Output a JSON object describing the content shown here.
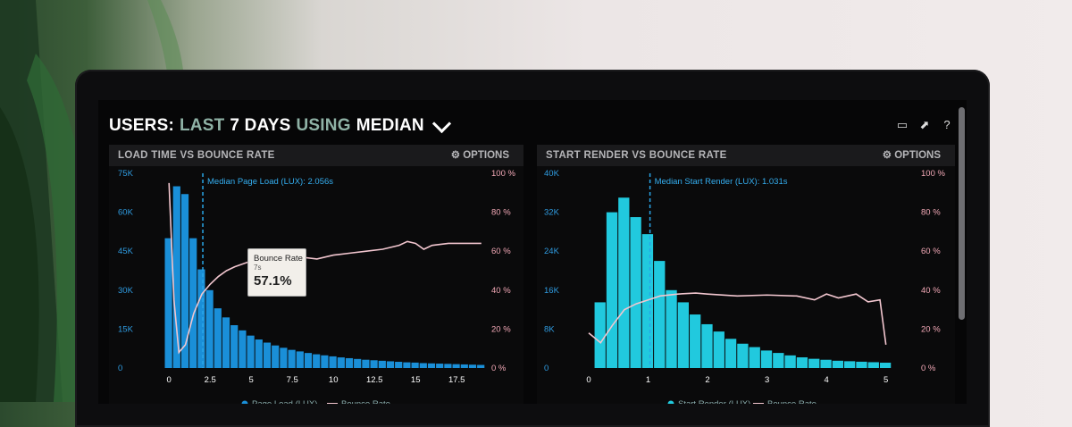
{
  "header": {
    "prefix": "USERS:",
    "range": "LAST",
    "days": "7 DAYS",
    "using": "USING",
    "metric": "MEDIAN"
  },
  "icons": [
    "monitor-icon",
    "share-icon",
    "help-icon"
  ],
  "colors": {
    "bar_left": "#1a8fd8",
    "bar_right": "#21c9de",
    "line": "#f2c6cf",
    "median": "#2aa6e8"
  },
  "panels": [
    {
      "title": "LOAD TIME VS BOUNCE RATE",
      "options": "OPTIONS",
      "median_label": "Median Page Load (LUX): 2.056s",
      "tooltip": {
        "title": "Bounce Rate",
        "sub": "7s",
        "value": "57.1%"
      },
      "legend": [
        "Page Load (LUX)",
        "Bounce Rate"
      ]
    },
    {
      "title": "START RENDER VS BOUNCE RATE",
      "options": "OPTIONS",
      "median_label": "Median Start Render (LUX): 1.031s",
      "legend": [
        "Start Render (LUX)",
        "Bounce Rate"
      ]
    }
  ],
  "chart_data": [
    {
      "type": "bar",
      "title": "LOAD TIME VS BOUNCE RATE",
      "y_left_ticks": [
        "75K",
        "60K",
        "45K",
        "30K",
        "15K",
        "0"
      ],
      "y_right_ticks": [
        "100 %",
        "80 %",
        "60 %",
        "40 %",
        "20 %",
        "0 %"
      ],
      "x_ticks": [
        "0",
        "2.5",
        "5",
        "7.5",
        "10",
        "12.5",
        "15",
        "17.5"
      ],
      "ylim": [
        0,
        75000
      ],
      "xlim": [
        -0.5,
        19.5
      ],
      "median_x": 2.056,
      "series": [
        {
          "name": "Page Load (LUX)",
          "x": [
            0,
            0.5,
            1,
            1.5,
            2,
            2.5,
            3,
            3.5,
            4,
            4.5,
            5,
            5.5,
            6,
            6.5,
            7,
            7.5,
            8,
            8.5,
            9,
            9.5,
            10,
            10.5,
            11,
            11.5,
            12,
            12.5,
            13,
            13.5,
            14,
            14.5,
            15,
            15.5,
            16,
            16.5,
            17,
            17.5,
            18,
            18.5,
            19
          ],
          "values": [
            50000,
            70000,
            67000,
            50000,
            38000,
            30000,
            23000,
            19500,
            16500,
            14500,
            12500,
            11000,
            9800,
            8700,
            7800,
            7000,
            6400,
            5800,
            5300,
            4900,
            4500,
            4100,
            3800,
            3500,
            3200,
            3000,
            2800,
            2600,
            2400,
            2200,
            2100,
            1900,
            1800,
            1700,
            1600,
            1500,
            1400,
            1300,
            1200
          ]
        },
        {
          "name": "Bounce Rate",
          "x": [
            0,
            0.3,
            0.6,
            1,
            1.5,
            2,
            2.5,
            3,
            3.5,
            4,
            5,
            6,
            7,
            8,
            9,
            10,
            11,
            12,
            13,
            14,
            14.5,
            15,
            15.5,
            16,
            17,
            18,
            19
          ],
          "values": [
            95,
            35,
            8,
            12,
            28,
            38,
            43,
            47,
            50,
            52,
            55,
            57,
            57.1,
            57,
            56,
            58,
            59,
            60,
            61,
            63,
            65,
            64,
            61,
            63,
            64,
            64,
            64
          ]
        }
      ]
    },
    {
      "type": "bar",
      "title": "START RENDER VS BOUNCE RATE",
      "y_left_ticks": [
        "40K",
        "32K",
        "24K",
        "16K",
        "8K",
        "0"
      ],
      "y_right_ticks": [
        "100 %",
        "80 %",
        "60 %",
        "40 %",
        "20 %",
        "0 %"
      ],
      "x_ticks": [
        "0",
        "1",
        "2",
        "3",
        "4",
        "5"
      ],
      "ylim": [
        0,
        40000
      ],
      "xlim": [
        0,
        5.2
      ],
      "median_x": 1.031,
      "series": [
        {
          "name": "Start Render (LUX)",
          "x": [
            0.2,
            0.4,
            0.6,
            0.8,
            1.0,
            1.2,
            1.4,
            1.6,
            1.8,
            2.0,
            2.2,
            2.4,
            2.6,
            2.8,
            3.0,
            3.2,
            3.4,
            3.6,
            3.8,
            4.0,
            4.2,
            4.4,
            4.6,
            4.8,
            5.0
          ],
          "values": [
            13500,
            32000,
            35000,
            31000,
            27500,
            22000,
            16000,
            13500,
            11000,
            9000,
            7500,
            6000,
            5000,
            4300,
            3600,
            3100,
            2600,
            2200,
            1900,
            1700,
            1500,
            1400,
            1300,
            1200,
            1100
          ]
        },
        {
          "name": "Bounce Rate",
          "x": [
            0,
            0.2,
            0.4,
            0.6,
            0.8,
            1,
            1.2,
            1.5,
            1.8,
            2,
            2.5,
            3,
            3.5,
            3.8,
            4,
            4.2,
            4.5,
            4.7,
            4.9,
            5.0
          ],
          "values": [
            18,
            13,
            22,
            30,
            33,
            35,
            37,
            38,
            38.5,
            38,
            37,
            37.5,
            37,
            35,
            38,
            36,
            38,
            34,
            35,
            12
          ]
        }
      ]
    }
  ]
}
